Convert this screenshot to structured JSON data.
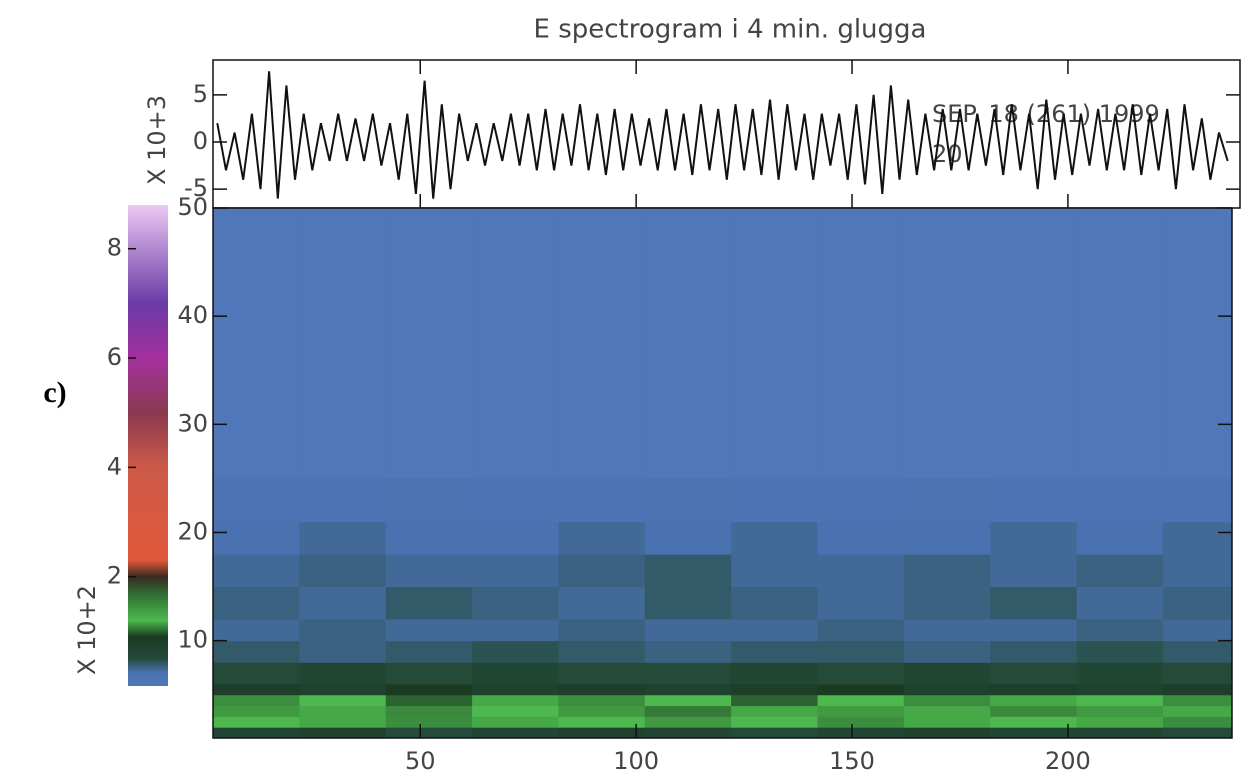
{
  "panel_label": "c)",
  "chart_data": [
    {
      "type": "line",
      "title": "E spectrogram i 4 min. glugga",
      "ylabel": "X 10+3",
      "color": "#111111",
      "annotations": [
        "SEP. 18 (261) 1999",
        "20"
      ],
      "ylim": [
        -7,
        8.7
      ],
      "yticks": [
        5,
        0,
        -5
      ],
      "x": [
        3,
        5,
        7,
        9,
        11,
        13,
        15,
        17,
        19,
        21,
        23,
        25,
        27,
        29,
        31,
        33,
        35,
        37,
        39,
        41,
        43,
        45,
        47,
        49,
        51,
        53,
        55,
        57,
        59,
        61,
        63,
        65,
        67,
        69,
        71,
        73,
        75,
        77,
        79,
        81,
        83,
        85,
        87,
        89,
        91,
        93,
        95,
        97,
        99,
        101,
        103,
        105,
        107,
        109,
        111,
        113,
        115,
        117,
        119,
        121,
        123,
        125,
        127,
        129,
        131,
        133,
        135,
        137,
        139,
        141,
        143,
        145,
        147,
        149,
        151,
        153,
        155,
        157,
        159,
        161,
        163,
        165,
        167,
        169,
        171,
        173,
        175,
        177,
        179,
        181,
        183,
        185,
        187,
        189,
        191,
        193,
        195,
        197,
        199,
        201,
        203,
        205,
        207,
        209,
        211,
        213,
        215,
        217,
        219,
        221,
        223,
        225,
        227,
        229,
        231,
        233,
        235,
        237
      ],
      "values": [
        2,
        -3,
        1,
        -4,
        3,
        -5,
        7.5,
        -6,
        6,
        -4,
        3,
        -3,
        2,
        -2,
        3,
        -2,
        2.5,
        -2,
        3,
        -2.5,
        2,
        -4,
        3,
        -5.5,
        6.5,
        -6,
        4,
        -5,
        3,
        -2,
        2,
        -2.5,
        2,
        -2,
        3,
        -2.5,
        3,
        -3,
        3.5,
        -3,
        3,
        -2.5,
        4,
        -3,
        3,
        -3.5,
        3.5,
        -3,
        3,
        -2.5,
        2.5,
        -3,
        3.5,
        -3,
        3,
        -3.5,
        4,
        -3,
        3.5,
        -4,
        4,
        -3,
        3.5,
        -3.5,
        4.5,
        -4,
        4,
        -3,
        3,
        -4,
        3,
        -2.5,
        3,
        -4,
        4,
        -4.5,
        5,
        -5.5,
        6,
        -4,
        4.5,
        -3.5,
        3,
        -3,
        3.5,
        -3,
        3.5,
        -3,
        3,
        -2.5,
        3.5,
        -3.5,
        4,
        -3,
        3,
        -5,
        4.5,
        -4,
        3,
        -3.5,
        3,
        -2.5,
        3.5,
        -3,
        3,
        -3,
        4,
        -3.5,
        3,
        -3,
        3.5,
        -5,
        4,
        -3,
        2.5,
        -4,
        1,
        -2
      ]
    },
    {
      "type": "heatmap",
      "xlim": [
        2,
        238
      ],
      "ylim": [
        1,
        50
      ],
      "xticks": [
        50,
        100,
        150,
        200
      ],
      "yticks": [
        10,
        20,
        30,
        40,
        50
      ],
      "x_edges": [
        2,
        22,
        42,
        62,
        82,
        102,
        122,
        142,
        162,
        182,
        202,
        222,
        238
      ],
      "y_edges": [
        1,
        2,
        3,
        4,
        5,
        6,
        8,
        10,
        12,
        15,
        18,
        21,
        25,
        50
      ],
      "z": [
        [
          0.6,
          0.7,
          0.5,
          0.6,
          0.7,
          0.6,
          0.5,
          0.6,
          0.7,
          0.6,
          0.6,
          0.5
        ],
        [
          1.2,
          1.3,
          1.1,
          1.3,
          1.2,
          1.4,
          1.2,
          1.1,
          1.3,
          1.2,
          1.3,
          1.1
        ],
        [
          1.4,
          1.3,
          1.5,
          1.2,
          1.4,
          1.6,
          1.3,
          1.4,
          1.3,
          1.5,
          1.4,
          1.3
        ],
        [
          1.1,
          1.2,
          1.0,
          1.3,
          1.1,
          1.2,
          1.0,
          1.2,
          1.1,
          1.3,
          1.2,
          1.1
        ],
        [
          0.8,
          0.7,
          0.9,
          0.7,
          0.8,
          0.7,
          0.8,
          0.9,
          0.7,
          0.8,
          0.7,
          0.8
        ],
        [
          0.5,
          0.6,
          0.5,
          0.6,
          0.5,
          0.5,
          0.6,
          0.5,
          0.6,
          0.5,
          0.6,
          0.5
        ],
        [
          0.4,
          0.35,
          0.4,
          0.45,
          0.4,
          0.35,
          0.4,
          0.4,
          0.35,
          0.4,
          0.45,
          0.4
        ],
        [
          0.3,
          0.35,
          0.3,
          0.3,
          0.35,
          0.3,
          0.3,
          0.35,
          0.3,
          0.3,
          0.35,
          0.3
        ],
        [
          0.35,
          0.3,
          0.4,
          0.35,
          0.3,
          0.4,
          0.35,
          0.3,
          0.35,
          0.4,
          0.3,
          0.35
        ],
        [
          0.3,
          0.35,
          0.3,
          0.3,
          0.35,
          0.4,
          0.3,
          0.3,
          0.35,
          0.3,
          0.35,
          0.3
        ],
        [
          0.25,
          0.3,
          0.25,
          0.25,
          0.3,
          0.25,
          0.3,
          0.25,
          0.25,
          0.3,
          0.25,
          0.3
        ],
        [
          0.15,
          0.15,
          0.2,
          0.15,
          0.15,
          0.2,
          0.15,
          0.15,
          0.2,
          0.15,
          0.15,
          0.15
        ],
        [
          0.05,
          0.05,
          0.05,
          0.05,
          0.05,
          0.05,
          0.05,
          0.05,
          0.05,
          0.05,
          0.05,
          0.05
        ]
      ]
    },
    {
      "type": "colorbar",
      "ylabel": "X 10+2",
      "ylim": [
        0,
        8.8
      ],
      "yticks": [
        2,
        4,
        6,
        8
      ],
      "colorscale": [
        [
          0,
          "#5078bb"
        ],
        [
          0.25,
          "#4a72b0"
        ],
        [
          0.5,
          "#244a3a"
        ],
        [
          0.9,
          "#1a3a22"
        ],
        [
          1.2,
          "#4db84d"
        ],
        [
          1.7,
          "#2f6a32"
        ],
        [
          2.0,
          "#3a2a20"
        ],
        [
          2.3,
          "#e0583a"
        ],
        [
          4.0,
          "#cc5a48"
        ],
        [
          5.0,
          "#8a3a50"
        ],
        [
          6.0,
          "#a4309e"
        ],
        [
          7.0,
          "#6a3aa6"
        ],
        [
          8.8,
          "#ecc8f4"
        ]
      ]
    }
  ]
}
